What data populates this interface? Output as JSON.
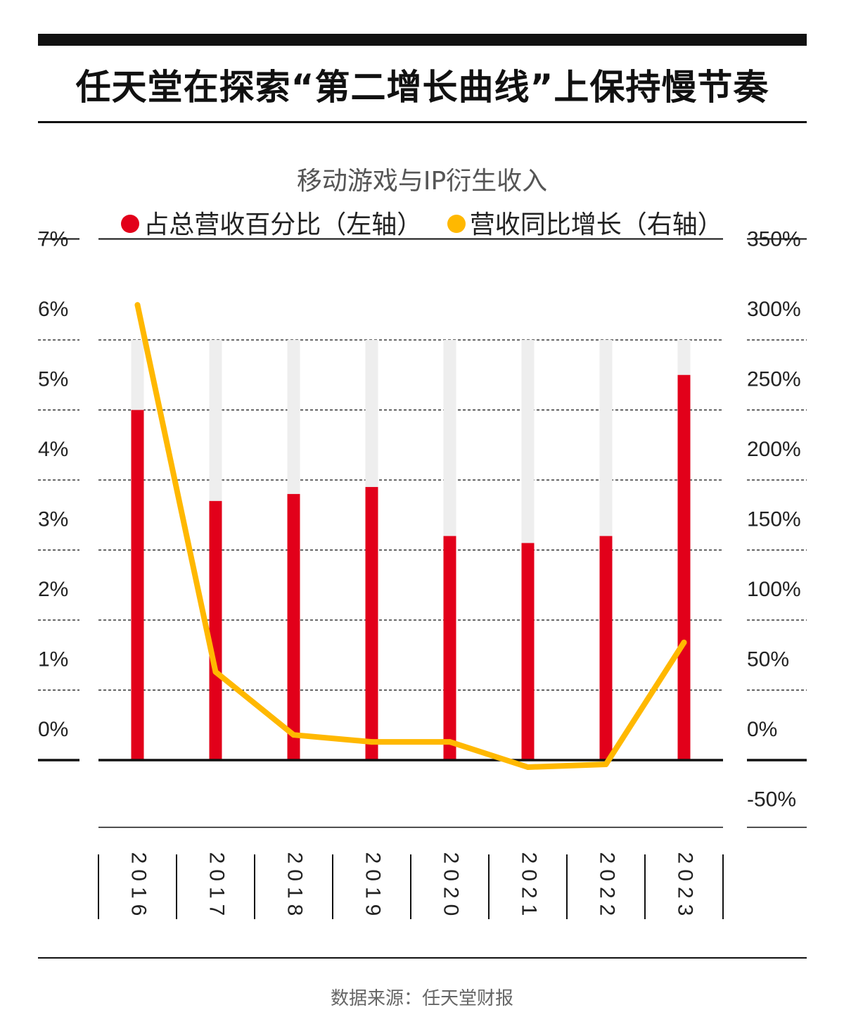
{
  "title": "任天堂在探索“第二增长曲线”上保持慢节奏",
  "source": "数据来源：任天堂财报",
  "colors": {
    "bar": "#E2001A",
    "line": "#FFB800",
    "track": "#EEEEEE",
    "ink": "#111111"
  },
  "chart_data": {
    "type": "bar",
    "title": "移动游戏与IP衍生收入",
    "categories": [
      "2016",
      "2017",
      "2018",
      "2019",
      "2020",
      "2021",
      "2022",
      "2023"
    ],
    "series": [
      {
        "name": "占总营收百分比（左轴）",
        "type": "bar",
        "axis": "left",
        "values": [
          5.0,
          3.7,
          3.8,
          3.9,
          3.2,
          3.1,
          3.2,
          5.5
        ]
      },
      {
        "name": "营收同比增长（右轴）",
        "type": "line",
        "axis": "right",
        "values": [
          325,
          63,
          18,
          13,
          13,
          -5,
          -3,
          84
        ]
      }
    ],
    "y_left": {
      "ticks": [
        "0%",
        "1%",
        "2%",
        "3%",
        "4%",
        "5%",
        "6%",
        "7%"
      ],
      "ylim": [
        0,
        7
      ],
      "track_max": 6
    },
    "y_right": {
      "ticks": [
        "-50%",
        "0%",
        "50%",
        "100%",
        "150%",
        "200%",
        "250%",
        "300%",
        "350%"
      ],
      "ylim": [
        -50,
        350
      ]
    },
    "grid": true,
    "legend": "top-center"
  }
}
